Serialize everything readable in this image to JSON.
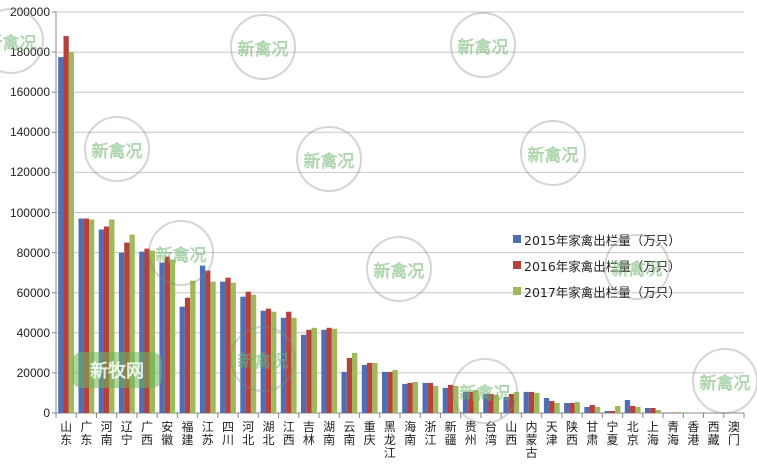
{
  "chart_data": {
    "type": "bar",
    "title": "",
    "xlabel": "",
    "ylabel": "",
    "ylim": [
      0,
      200000
    ],
    "yticks": [
      0,
      20000,
      40000,
      60000,
      80000,
      100000,
      120000,
      140000,
      160000,
      180000,
      200000
    ],
    "grid": true,
    "legend_position": "right-middle",
    "categories": [
      "山东",
      "广东",
      "河南",
      "辽宁",
      "广西",
      "安徽",
      "福建",
      "江苏",
      "四川",
      "河北",
      "湖北",
      "江西",
      "吉林",
      "湖南",
      "云南",
      "重庆",
      "黑龙江",
      "海南",
      "浙江",
      "新疆",
      "贵州",
      "台湾",
      "山西",
      "内蒙古",
      "天津",
      "陕西",
      "甘肃",
      "宁夏",
      "北京",
      "上海",
      "青海",
      "香港",
      "西藏",
      "澳门"
    ],
    "series": [
      {
        "name": "2015年家禽出栏量（万只）",
        "color": "#4f6fb5",
        "values": [
          177500,
          97000,
          91500,
          80000,
          80500,
          75000,
          53000,
          73500,
          65500,
          58000,
          51000,
          47500,
          39000,
          41500,
          20500,
          24000,
          20500,
          14500,
          15000,
          12500,
          10500,
          9500,
          8000,
          10500,
          7500,
          5000,
          3000,
          1000,
          6500,
          2500,
          200,
          0,
          0,
          0
        ]
      },
      {
        "name": "2016年家禽出栏量（万只）",
        "color": "#b8403c",
        "values": [
          188000,
          97000,
          93000,
          85000,
          82000,
          78000,
          57500,
          71000,
          67500,
          60500,
          52000,
          50500,
          41500,
          42500,
          27500,
          25000,
          20500,
          15000,
          15000,
          14000,
          10500,
          9500,
          9500,
          10500,
          6000,
          5000,
          4000,
          1000,
          3500,
          2500,
          200,
          0,
          0,
          0
        ]
      },
      {
        "name": "2017年家禽出栏量（万只）",
        "color": "#9fba5a",
        "values": [
          180000,
          96500,
          96500,
          89000,
          81000,
          76500,
          66000,
          65500,
          65000,
          59000,
          50500,
          47500,
          42500,
          42000,
          30000,
          25000,
          21500,
          15500,
          13500,
          13500,
          11500,
          9000,
          10500,
          10000,
          5000,
          5500,
          3000,
          3500,
          3000,
          1500,
          500,
          0,
          0,
          0
        ]
      }
    ]
  },
  "legend": [
    {
      "label": "2015年家禽出栏量（万只）",
      "color": "#4f6fb5"
    },
    {
      "label": "2016年家禽出栏量（万只）",
      "color": "#b8403c"
    },
    {
      "label": "2017年家禽出栏量（万只）",
      "color": "#9fba5a"
    }
  ],
  "watermarks": {
    "circle_text": "新禽况",
    "badge_text": "新牧网"
  }
}
